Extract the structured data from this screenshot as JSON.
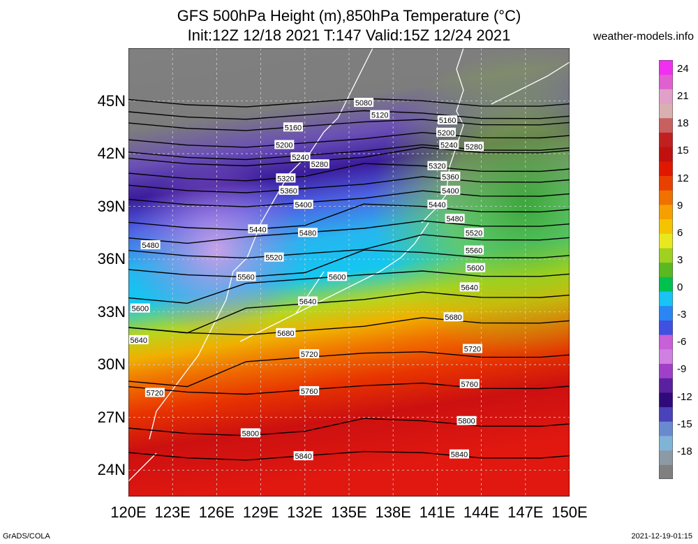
{
  "header": {
    "title_line1": "GFS 500hPa Height (m),850hPa Temperature (°C)",
    "title_line2": "Init:12Z 12/18 2021 T:147 Valid:15Z 12/24 2021",
    "site": "weather-models.info"
  },
  "footer": {
    "software": "GrADS/COLA",
    "generated": "2021-12-19-01:15"
  },
  "map": {
    "lon_range": [
      120,
      150
    ],
    "lat_range": [
      22.5,
      48
    ],
    "lat_ticks": [
      "45N",
      "42N",
      "39N",
      "36N",
      "33N",
      "30N",
      "27N",
      "24N"
    ],
    "lat_values": [
      45,
      42,
      39,
      36,
      33,
      30,
      27,
      24
    ],
    "lon_ticks": [
      "120E",
      "123E",
      "126E",
      "129E",
      "132E",
      "135E",
      "138E",
      "141E",
      "144E",
      "147E",
      "150E"
    ],
    "lon_values": [
      120,
      123,
      126,
      129,
      132,
      135,
      138,
      141,
      144,
      147,
      150
    ],
    "grid": true,
    "contour_labels": [
      {
        "text": "5080",
        "lon": 136.0,
        "lat": 44.9
      },
      {
        "text": "5120",
        "lon": 137.1,
        "lat": 44.2
      },
      {
        "text": "5160",
        "lon": 141.7,
        "lat": 43.9
      },
      {
        "text": "5160",
        "lon": 131.2,
        "lat": 43.5
      },
      {
        "text": "5200",
        "lon": 141.6,
        "lat": 43.2
      },
      {
        "text": "5200",
        "lon": 130.6,
        "lat": 42.5
      },
      {
        "text": "5240",
        "lon": 141.8,
        "lat": 42.5
      },
      {
        "text": "5280",
        "lon": 143.5,
        "lat": 42.4
      },
      {
        "text": "5240",
        "lon": 131.7,
        "lat": 41.8
      },
      {
        "text": "5280",
        "lon": 133.0,
        "lat": 41.4
      },
      {
        "text": "5320",
        "lon": 141.0,
        "lat": 41.3
      },
      {
        "text": "5360",
        "lon": 141.9,
        "lat": 40.7
      },
      {
        "text": "5320",
        "lon": 130.7,
        "lat": 40.6
      },
      {
        "text": "5400",
        "lon": 141.9,
        "lat": 39.9
      },
      {
        "text": "5360",
        "lon": 130.9,
        "lat": 39.9
      },
      {
        "text": "5440",
        "lon": 141.0,
        "lat": 39.1
      },
      {
        "text": "5400",
        "lon": 131.9,
        "lat": 39.1
      },
      {
        "text": "5480",
        "lon": 142.2,
        "lat": 38.3
      },
      {
        "text": "5440",
        "lon": 128.8,
        "lat": 37.7
      },
      {
        "text": "5520",
        "lon": 143.5,
        "lat": 37.5
      },
      {
        "text": "5480",
        "lon": 132.2,
        "lat": 37.5
      },
      {
        "text": "5480",
        "lon": 121.5,
        "lat": 36.8
      },
      {
        "text": "5560",
        "lon": 143.5,
        "lat": 36.5
      },
      {
        "text": "5520",
        "lon": 129.9,
        "lat": 36.1
      },
      {
        "text": "5600",
        "lon": 143.6,
        "lat": 35.5
      },
      {
        "text": "5560",
        "lon": 128.0,
        "lat": 35.0
      },
      {
        "text": "5600",
        "lon": 134.2,
        "lat": 35.0
      },
      {
        "text": "5640",
        "lon": 143.2,
        "lat": 34.4
      },
      {
        "text": "5640",
        "lon": 132.2,
        "lat": 33.6
      },
      {
        "text": "5600",
        "lon": 120.8,
        "lat": 33.2
      },
      {
        "text": "5680",
        "lon": 142.1,
        "lat": 32.7
      },
      {
        "text": "5680",
        "lon": 130.7,
        "lat": 31.8
      },
      {
        "text": "5640",
        "lon": 120.7,
        "lat": 31.4
      },
      {
        "text": "5720",
        "lon": 143.4,
        "lat": 30.9
      },
      {
        "text": "5720",
        "lon": 132.3,
        "lat": 30.6
      },
      {
        "text": "5760",
        "lon": 143.2,
        "lat": 28.9
      },
      {
        "text": "5760",
        "lon": 132.3,
        "lat": 28.5
      },
      {
        "text": "5720",
        "lon": 121.8,
        "lat": 28.4
      },
      {
        "text": "5800",
        "lon": 143.0,
        "lat": 26.8
      },
      {
        "text": "5800",
        "lon": 128.3,
        "lat": 26.1
      },
      {
        "text": "5840",
        "lon": 142.5,
        "lat": 24.9
      },
      {
        "text": "5840",
        "lon": 131.9,
        "lat": 24.8
      }
    ]
  },
  "colorbar": {
    "labels": [
      "24",
      "21",
      "18",
      "15",
      "12",
      "9",
      "6",
      "3",
      "0",
      "-3",
      "-6",
      "-9",
      "-12",
      "-15",
      "-18"
    ],
    "values": [
      24,
      21,
      18,
      15,
      12,
      9,
      6,
      3,
      0,
      -3,
      -6,
      -9,
      -12,
      -15,
      -18
    ],
    "range": [
      -21,
      25
    ],
    "colors": [
      "#808080",
      "#8c9aa6",
      "#7fb4d6",
      "#6a8ad0",
      "#4a42b8",
      "#300a7a",
      "#5a20a0",
      "#a040c8",
      "#d080e0",
      "#c860d8",
      "#4050e0",
      "#2a86f2",
      "#19c4f4",
      "#00c050",
      "#5ab822",
      "#a0d020",
      "#e8e820",
      "#f5c400",
      "#f5a000",
      "#f07000",
      "#e84000",
      "#e01800",
      "#c01010",
      "#c02020",
      "#c86060",
      "#d8b0b0",
      "#e0a0c8",
      "#e060d0",
      "#f030f0"
    ]
  }
}
